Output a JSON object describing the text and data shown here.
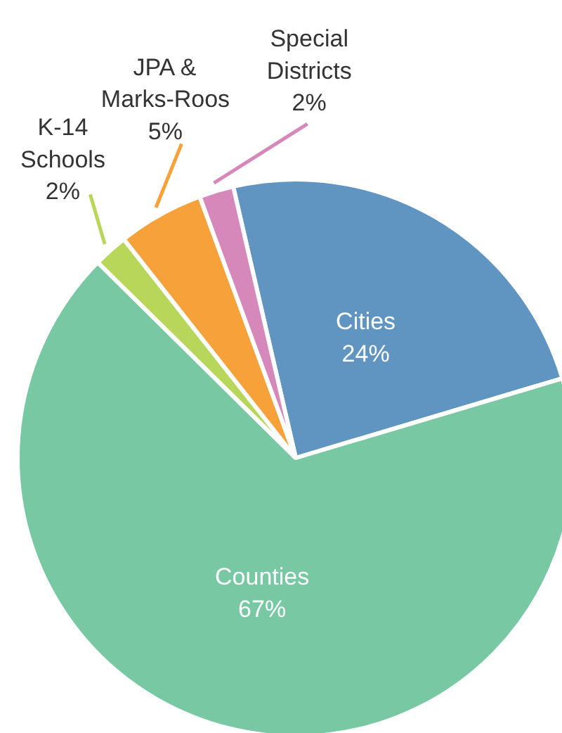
{
  "chart_data": {
    "type": "pie",
    "categories": [
      "Cities",
      "Counties",
      "K-14 Schools",
      "JPA & Marks-Roos",
      "Special Districts"
    ],
    "values": [
      24,
      67,
      2,
      5,
      2
    ],
    "value_labels": [
      "24%",
      "67%",
      "2%",
      "5%",
      "2%"
    ],
    "colors": [
      "#5f95c0",
      "#77c8a3",
      "#b8d65a",
      "#f6a13a",
      "#d788bb"
    ]
  }
}
